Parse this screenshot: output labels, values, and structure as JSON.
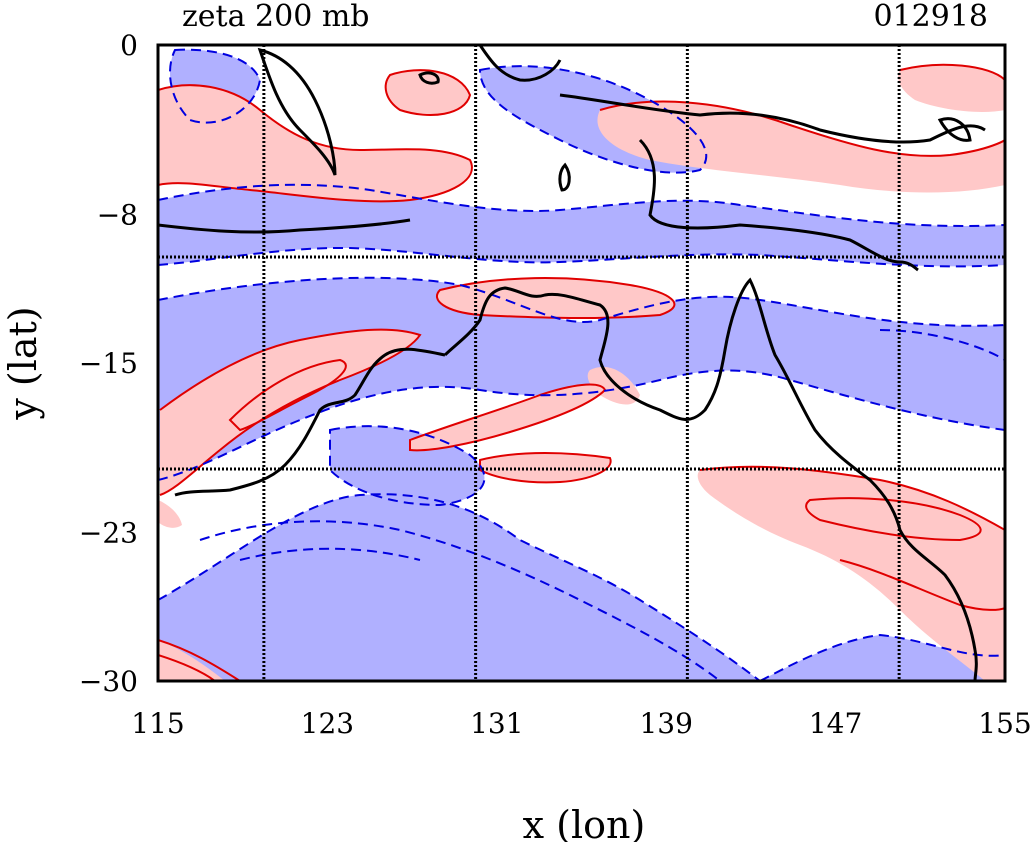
{
  "chart_data": {
    "type": "heatmap",
    "title": "zeta 200 mb",
    "timestamp": "012918",
    "xlabel": "x (lon)",
    "ylabel": "y (lat)",
    "xlim": [
      115,
      155
    ],
    "ylim": [
      -30,
      0
    ],
    "x_ticks": [
      115,
      123,
      131,
      139,
      147,
      155
    ],
    "y_ticks": [
      0,
      -8,
      -15,
      -23,
      -30
    ],
    "x_tick_labels": [
      "115",
      "123",
      "131",
      "139",
      "147",
      "155"
    ],
    "y_tick_labels": [
      "0",
      "−8",
      "−15",
      "−23",
      "−30"
    ],
    "grid_lon": [
      120,
      130,
      140,
      150
    ],
    "grid_lat": [
      -10,
      -20
    ],
    "colors": {
      "positive_fill": "#ffc8c8",
      "positive_line": "#e00000",
      "negative_fill": "#b0b0ff",
      "negative_line": "#0000e0",
      "coast": "#000000"
    }
  }
}
